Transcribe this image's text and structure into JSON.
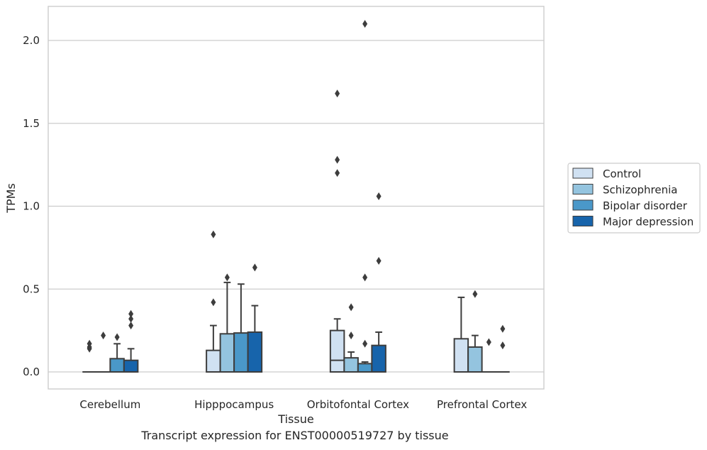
{
  "caption": "Transcript expression for ENST00000519727 by tissue",
  "chart_data": {
    "type": "box",
    "xlabel": "Tissue",
    "ylabel": "TPMs",
    "ylim": [
      -0.1,
      2.22
    ],
    "yticks": [
      0.0,
      0.5,
      1.0,
      1.5,
      2.0
    ],
    "ytick_labels": [
      "0.0",
      "0.5",
      "1.0",
      "1.5",
      "2.0"
    ],
    "grid": "horizontal",
    "legend_position": "center-right",
    "categories": [
      "Cerebellum",
      "Hipppocampus",
      "Orbitofontal Cortex",
      "Prefrontal Cortex"
    ],
    "series": [
      {
        "name": "Control",
        "color": "#d0e1f2",
        "boxes": [
          {
            "q1": 0,
            "median": 0,
            "q3": 0,
            "whisker_low": 0,
            "whisker_high": 0,
            "outliers": [
              0.14,
              0.15,
              0.17
            ]
          },
          {
            "q1": 0,
            "median": 0,
            "q3": 0.13,
            "whisker_low": 0,
            "whisker_high": 0.28,
            "outliers": [
              0.42,
              0.83
            ]
          },
          {
            "q1": 0,
            "median": 0.07,
            "q3": 0.25,
            "whisker_low": 0,
            "whisker_high": 0.32,
            "outliers": [
              1.2,
              1.28,
              1.68
            ]
          },
          {
            "q1": 0,
            "median": 0,
            "q3": 0.2,
            "whisker_low": 0,
            "whisker_high": 0.45,
            "outliers": []
          }
        ]
      },
      {
        "name": "Schizophrenia",
        "color": "#94c4df",
        "boxes": [
          {
            "q1": 0,
            "median": 0,
            "q3": 0,
            "whisker_low": 0,
            "whisker_high": 0,
            "outliers": [
              0.22
            ]
          },
          {
            "q1": 0,
            "median": 0,
            "q3": 0.23,
            "whisker_low": 0,
            "whisker_high": 0.54,
            "outliers": [
              0.57
            ]
          },
          {
            "q1": 0,
            "median": 0,
            "q3": 0.085,
            "whisker_low": 0,
            "whisker_high": 0.12,
            "outliers": [
              0.22,
              0.39
            ]
          },
          {
            "q1": 0,
            "median": 0,
            "q3": 0.15,
            "whisker_low": 0,
            "whisker_high": 0.22,
            "outliers": [
              0.47
            ]
          }
        ]
      },
      {
        "name": "Bipolar disorder",
        "color": "#4a98c9",
        "boxes": [
          {
            "q1": 0,
            "median": 0,
            "q3": 0.08,
            "whisker_low": 0,
            "whisker_high": 0.17,
            "outliers": [
              0.21
            ]
          },
          {
            "q1": 0,
            "median": 0,
            "q3": 0.235,
            "whisker_low": 0,
            "whisker_high": 0.53,
            "outliers": []
          },
          {
            "q1": 0,
            "median": 0,
            "q3": 0.05,
            "whisker_low": 0,
            "whisker_high": 0.06,
            "outliers": [
              0.17,
              0.57,
              2.1
            ]
          },
          {
            "q1": 0,
            "median": 0,
            "q3": 0,
            "whisker_low": 0,
            "whisker_high": 0,
            "outliers": [
              0.18
            ]
          }
        ]
      },
      {
        "name": "Major depression",
        "color": "#1764ab",
        "boxes": [
          {
            "q1": 0,
            "median": 0,
            "q3": 0.07,
            "whisker_low": 0,
            "whisker_high": 0.14,
            "outliers": [
              0.28,
              0.32,
              0.35
            ]
          },
          {
            "q1": 0,
            "median": 0,
            "q3": 0.24,
            "whisker_low": 0,
            "whisker_high": 0.4,
            "outliers": [
              0.63
            ]
          },
          {
            "q1": 0,
            "median": 0,
            "q3": 0.16,
            "whisker_low": 0,
            "whisker_high": 0.24,
            "outliers": [
              0.67,
              1.06
            ]
          },
          {
            "q1": 0,
            "median": 0,
            "q3": 0,
            "whisker_low": 0,
            "whisker_high": 0,
            "outliers": [
              0.16,
              0.26
            ]
          }
        ]
      }
    ]
  }
}
